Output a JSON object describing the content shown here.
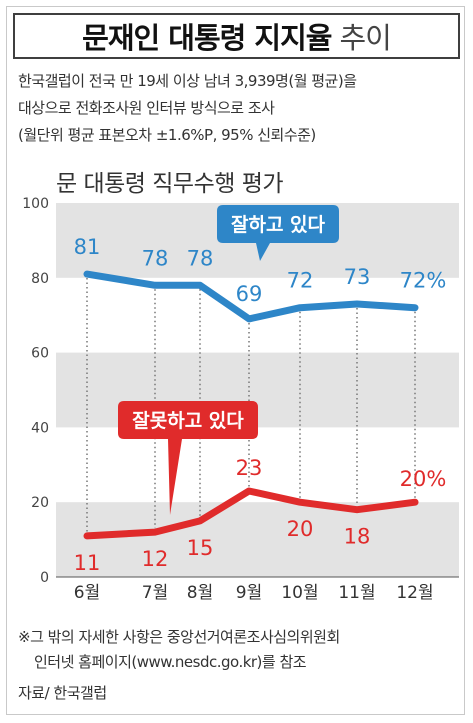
{
  "header": {
    "title": "문재인 대통령 지지율",
    "title_suffix": "추이"
  },
  "notes": [
    "한국갤럽이 전국 만 19세 이상 남녀 3,939명(월 평균)을",
    "대상으로 전화조사원 인터뷰 방식으로 조사",
    "(월단위 평균 표본오차 ±1.6%P, 95% 신뢰수준)"
  ],
  "chart_data": {
    "type": "line",
    "title": "문 대통령 직무수행 평가",
    "categories": [
      "6월",
      "7월",
      "8월",
      "9월",
      "10월",
      "11월",
      "12월"
    ],
    "ylim": [
      0,
      100
    ],
    "yticks": [
      "0",
      "20",
      "40",
      "60",
      "80",
      "100"
    ],
    "unit": "%",
    "series": [
      {
        "name": "잘하고 있다",
        "values": [
          81,
          78,
          78,
          69,
          72,
          73,
          72
        ],
        "labels": [
          "81",
          "78",
          "78",
          "69",
          "72",
          "73",
          "72%"
        ],
        "color": "#2e86c8"
      },
      {
        "name": "잘못하고 있다",
        "values": [
          11,
          12,
          15,
          23,
          20,
          18,
          20
        ],
        "labels": [
          "11",
          "12",
          "15",
          "23",
          "20",
          "18",
          "20%"
        ],
        "color": "#e02b2b"
      }
    ],
    "grid": "alternating-bands"
  },
  "footer": {
    "lines": [
      "※그 밖의 자세한 사항은 중앙선거여론조사심의위원회",
      "인터넷 홈페이지(www.nesdc.go.kr)를 참조"
    ],
    "source": "자료/ 한국갤럽"
  },
  "colors": {
    "band": "#e3e3e3",
    "approve": "#2e86c8",
    "disapprove": "#e02b2b"
  }
}
